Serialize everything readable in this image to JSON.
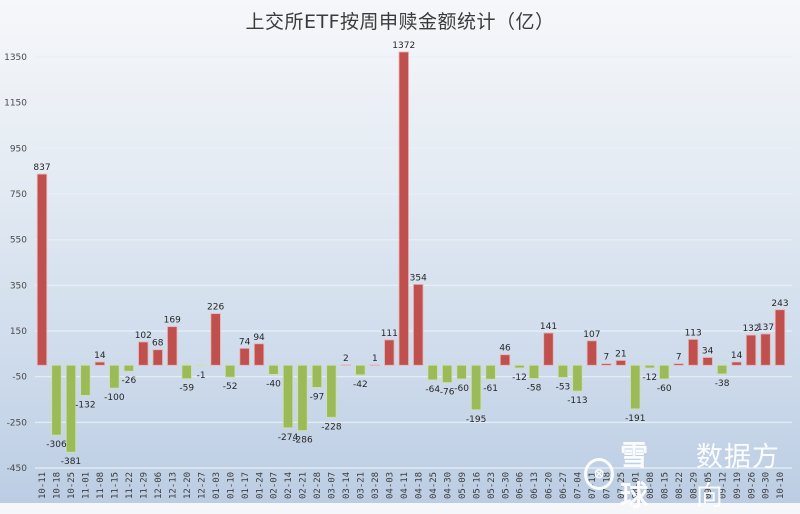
{
  "chart_data": {
    "type": "bar",
    "title": "上交所ETF按周申赎金额统计（亿）",
    "xlabel": "",
    "ylabel": "",
    "categories": [
      "10-11",
      "10-18",
      "10-25",
      "11-01",
      "11-08",
      "11-15",
      "11-22",
      "11-29",
      "12-06",
      "12-13",
      "12-20",
      "12-27",
      "01-03",
      "01-10",
      "01-17",
      "01-24",
      "02-07",
      "02-14",
      "02-21",
      "02-28",
      "03-07",
      "03-14",
      "03-21",
      "03-28",
      "04-03",
      "04-11",
      "04-18",
      "04-25",
      "04-30",
      "05-09",
      "05-16",
      "05-23",
      "05-30",
      "06-06",
      "06-13",
      "06-20",
      "06-27",
      "07-04",
      "07-11",
      "07-18",
      "07-25",
      "08-01",
      "08-08",
      "08-15",
      "08-22",
      "08-29",
      "09-05",
      "09-12",
      "09-19",
      "09-26",
      "09-30",
      "10-10"
    ],
    "values": [
      837,
      -306,
      -381,
      -132,
      14,
      -100,
      -26,
      102,
      68,
      169,
      -59,
      -1,
      226,
      -52,
      74,
      94,
      -40,
      -274,
      -286,
      -97,
      -228,
      2,
      -42,
      1,
      111,
      1372,
      354,
      -64,
      -76,
      -60,
      -195,
      -61,
      46,
      -12,
      -58,
      141,
      -53,
      -113,
      107,
      7,
      21,
      -191,
      -12,
      -60,
      7,
      113,
      34,
      -38,
      14,
      132,
      137,
      243
    ],
    "ylim": [
      -450,
      1350
    ],
    "yticks": [
      1350,
      1150,
      950,
      750,
      550,
      350,
      150,
      -50,
      -250,
      -450
    ],
    "grid": true,
    "legend": null,
    "data_labels": true,
    "colors": {
      "positive": "#c0504d",
      "positive_edge": "#e8b3b1",
      "negative": "#9bbb59",
      "negative_edge": "#cfe0a8",
      "grid": "#e9eff7"
    }
  },
  "watermark": {
    "logo": "⊗",
    "brand": "雪球",
    "author": "数据方向"
  }
}
